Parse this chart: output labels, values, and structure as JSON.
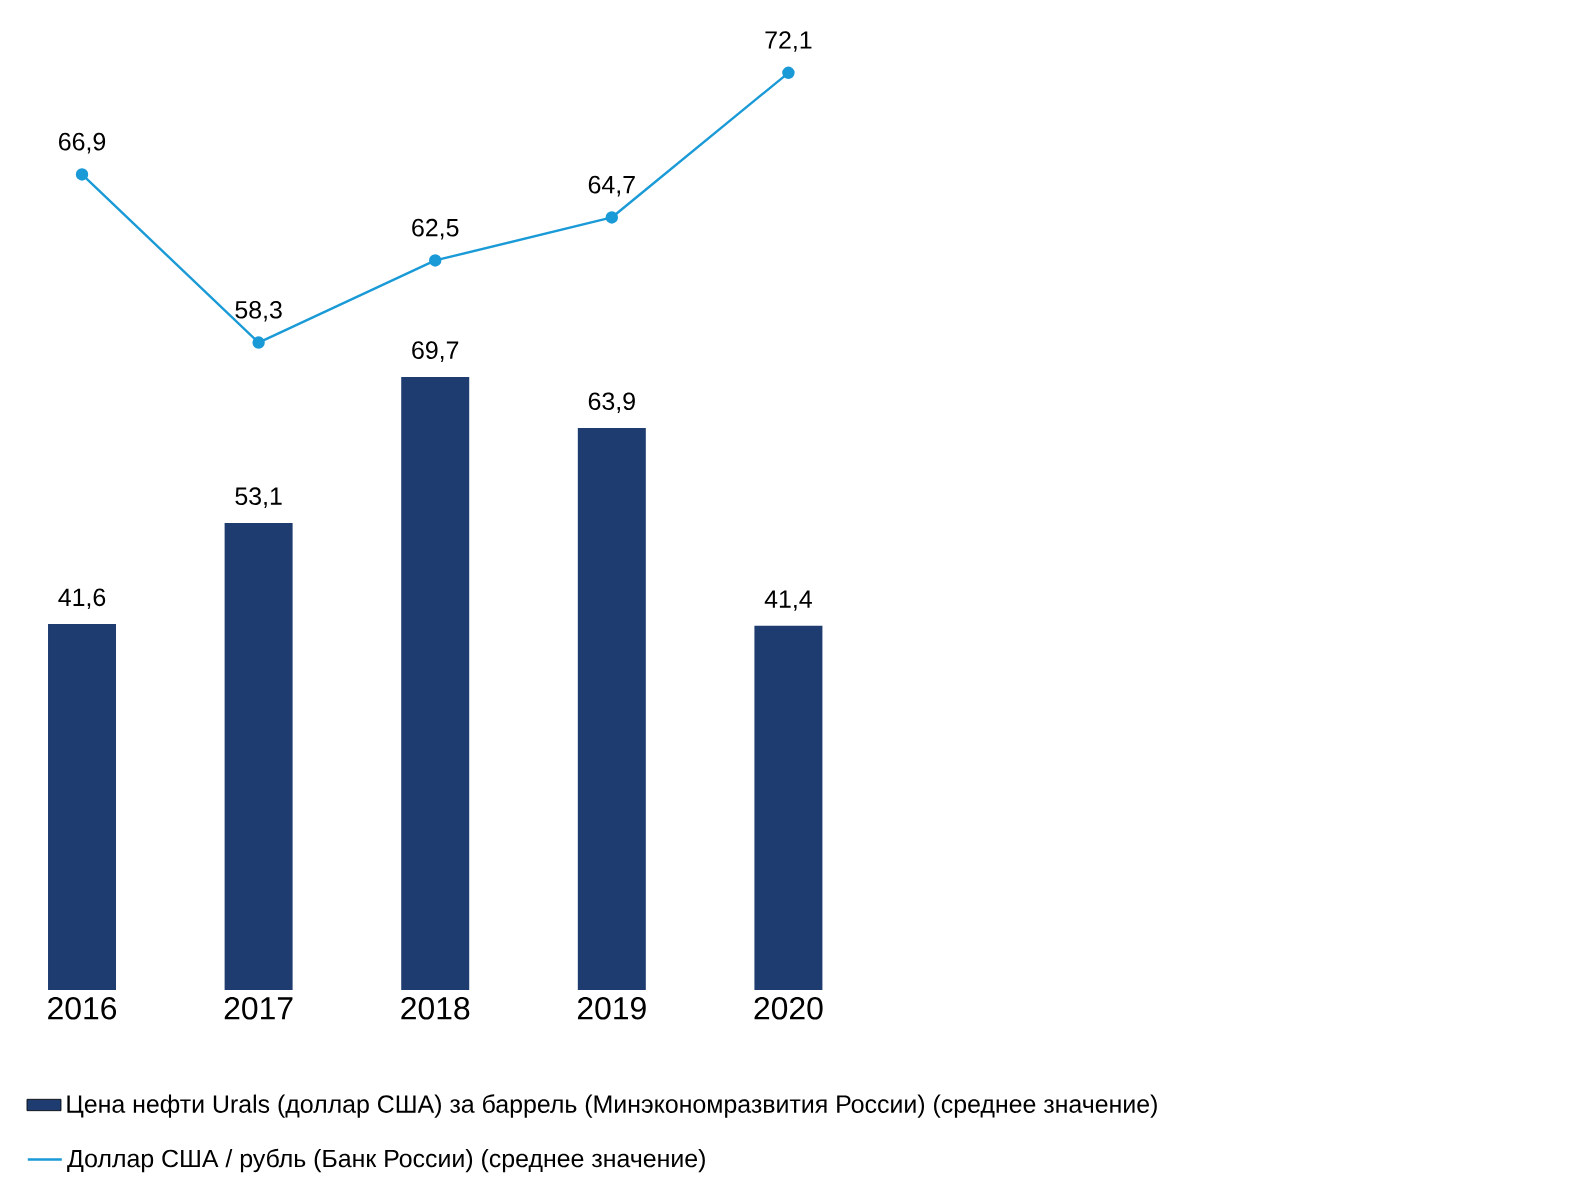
{
  "chart_data": [
    {
      "type": "line",
      "categories": [
        null,
        null,
        null,
        null,
        null
      ],
      "legend": "bottom",
      "marker": "circle",
      "series": [
        {
          "name": "Доллар США / рубль (Банк России) (среднее значение)",
          "color": "#1a9ad6",
          "values": [
            66.9,
            58.3,
            62.5,
            64.7,
            72.1
          ],
          "value_labels": [
            "66,9",
            "58,3",
            "62,5",
            "64,7",
            "72,1"
          ]
        }
      ]
    },
    {
      "type": "bar",
      "categories": [
        "2016",
        "2017",
        "2018",
        "2019",
        "2020"
      ],
      "legend": "bottom",
      "series": [
        {
          "name": "Цена нефти Urals (доллар США) за баррель (Минэкономразвития России) (среднее значение)",
          "color": "#1f3c70",
          "values": [
            41.6,
            53.1,
            69.7,
            63.9,
            41.4
          ],
          "value_labels": [
            "41,6",
            "53,1",
            "69,7",
            "63,9",
            "41,4"
          ]
        }
      ]
    }
  ]
}
